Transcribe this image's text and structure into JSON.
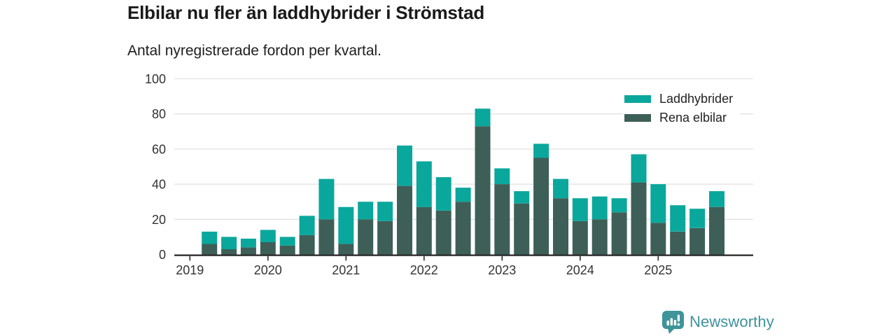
{
  "header": {
    "title": "Elbilar nu fler än laddhybrider i Strömstad",
    "subtitle": "Antal nyregistrerade fordon per kvartal."
  },
  "legend": {
    "items": [
      {
        "label": "Laddhybrider",
        "color": "#0aa79c"
      },
      {
        "label": "Rena elbilar",
        "color": "#3d5f57"
      }
    ]
  },
  "footer": {
    "brand": "Newsworthy",
    "brand_color": "#3d929d",
    "icon_color": "#3e9499"
  },
  "chart_data": {
    "type": "bar",
    "stacked": true,
    "title": "Elbilar nu fler än laddhybrider i Strömstad",
    "subtitle": "Antal nyregistrerade fordon per kvartal.",
    "x": [
      "2019-Q2",
      "2019-Q3",
      "2019-Q4",
      "2020-Q1",
      "2020-Q2",
      "2020-Q3",
      "2020-Q4",
      "2021-Q1",
      "2021-Q2",
      "2021-Q3",
      "2021-Q4",
      "2022-Q1",
      "2022-Q2",
      "2022-Q3",
      "2022-Q4",
      "2023-Q1",
      "2023-Q2",
      "2023-Q3",
      "2023-Q4",
      "2024-Q1",
      "2024-Q2",
      "2024-Q3",
      "2024-Q4",
      "2025-Q1",
      "2025-Q2",
      "2025-Q3",
      "2025-Q4"
    ],
    "x_tick_labels": [
      "2019",
      "2020",
      "2021",
      "2022",
      "2023",
      "2024",
      "2025"
    ],
    "series": [
      {
        "name": "Rena elbilar",
        "color": "#3d5f57",
        "values": [
          6,
          3,
          4,
          7,
          5,
          11,
          20,
          6,
          20,
          19,
          39,
          27,
          25,
          30,
          73,
          40,
          29,
          55,
          32,
          19,
          20,
          24,
          41,
          18,
          13,
          15,
          27
        ]
      },
      {
        "name": "Laddhybrider",
        "color": "#0aa79c",
        "values": [
          7,
          7,
          5,
          7,
          5,
          11,
          23,
          21,
          10,
          11,
          23,
          26,
          19,
          8,
          10,
          9,
          7,
          8,
          11,
          13,
          13,
          8,
          16,
          22,
          15,
          11,
          9
        ]
      }
    ],
    "totals": [
      13,
      10,
      9,
      14,
      10,
      22,
      43,
      27,
      30,
      30,
      62,
      53,
      44,
      38,
      83,
      49,
      36,
      63,
      43,
      32,
      33,
      32,
      57,
      40,
      28,
      26,
      36
    ],
    "ylim": [
      0,
      100
    ],
    "yticks": [
      0,
      20,
      40,
      60,
      80,
      100
    ],
    "grid": "horizontal",
    "legend_position": "top-right",
    "axis_color": "#2a2a2a",
    "gridline_color": "#e2e2e2"
  }
}
